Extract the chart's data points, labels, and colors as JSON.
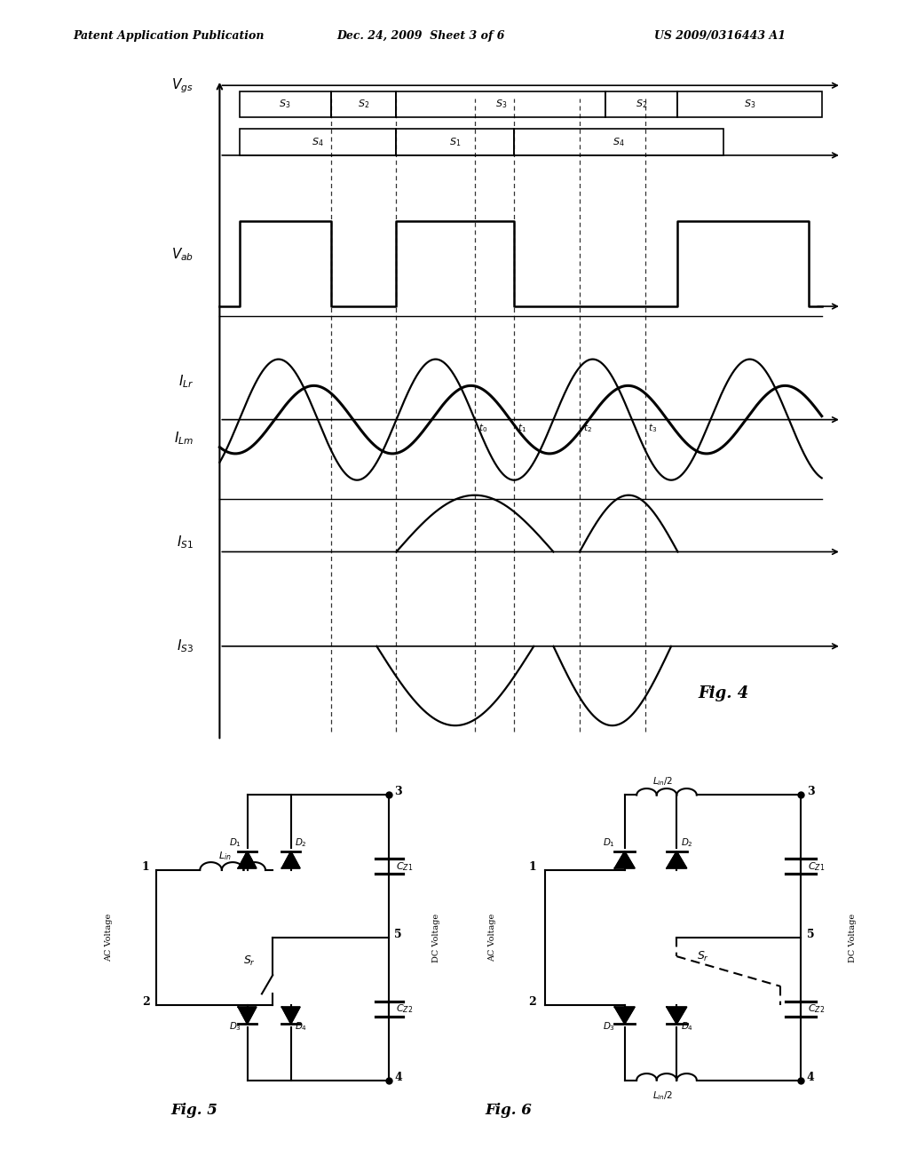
{
  "header_left": "Patent Application Publication",
  "header_mid": "Dec. 24, 2009  Sheet 3 of 6",
  "header_right": "US 2009/0316443 A1",
  "fig4_label": "Fig. 4",
  "fig5_label": "Fig. 5",
  "fig6_label": "Fig. 6",
  "background_color": "#ffffff",
  "line_color": "#000000"
}
